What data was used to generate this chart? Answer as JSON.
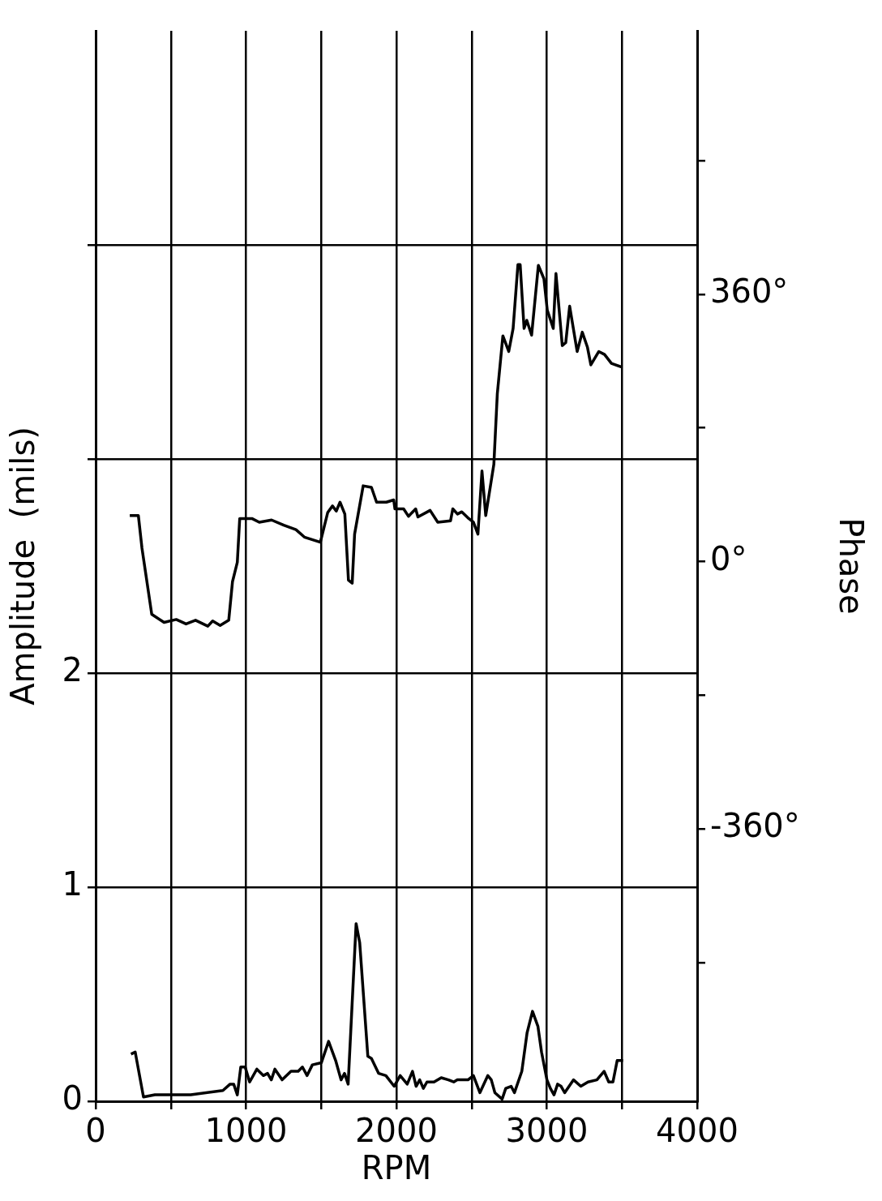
{
  "chart_data": {
    "type": "line",
    "xlabel": "RPM",
    "ylabel": "Amplitude  (mils)",
    "y2label": "Phase",
    "xlim": [
      0,
      4000
    ],
    "xticks": [
      0,
      {
        "value": 500,
        "label": null
      },
      1000,
      {
        "value": 1500,
        "label": null
      },
      2000,
      {
        "value": 2500,
        "label": null
      },
      3000,
      {
        "value": 3500,
        "label": null
      },
      4000
    ],
    "ylim": [
      0,
      5
    ],
    "yticks": [
      0,
      1,
      2,
      {
        "value": 3,
        "label": null
      },
      {
        "value": 4,
        "label": null
      }
    ],
    "y2lim": [
      -727,
      715
    ],
    "y2ticks": [
      {
        "value": -540,
        "label": null
      },
      {
        "value": -360,
        "label": "-360°"
      },
      {
        "value": -180,
        "label": null
      },
      {
        "value": 0,
        "label": "0°"
      },
      {
        "value": 180,
        "label": null
      },
      {
        "value": 360,
        "label": "360°"
      },
      {
        "value": 540,
        "label": null
      }
    ],
    "grid": true,
    "marker": "none",
    "line_style": "solid",
    "series": [
      {
        "color": "#000000",
        "x": [
          235,
          263,
          318,
          394,
          632,
          846,
          894,
          918,
          942,
          965,
          994,
          1024,
          1072,
          1115,
          1143,
          1168,
          1192,
          1240,
          1299,
          1347,
          1375,
          1406,
          1441,
          1501,
          1549,
          1596,
          1632,
          1655,
          1679,
          1732,
          1756,
          1810,
          1834,
          1882,
          1930,
          1985,
          2025,
          2072,
          2107,
          2131,
          2155,
          2179,
          2203,
          2250,
          2298,
          2346,
          2381,
          2405,
          2476,
          2512,
          2555,
          2608,
          2631,
          2655,
          2703,
          2727,
          2763,
          2785,
          2834,
          2869,
          2905,
          2941,
          2965,
          3001,
          3024,
          3048,
          3072,
          3095,
          3119,
          3178,
          3226,
          3274,
          3333,
          3381,
          3412,
          3440,
          3468,
          3507
        ],
        "values": [
          0.22,
          0.23,
          0.02,
          0.03,
          0.03,
          0.05,
          0.08,
          0.08,
          0.03,
          0.16,
          0.16,
          0.09,
          0.15,
          0.12,
          0.13,
          0.1,
          0.15,
          0.1,
          0.14,
          0.14,
          0.16,
          0.12,
          0.17,
          0.18,
          0.28,
          0.19,
          0.1,
          0.13,
          0.08,
          0.83,
          0.74,
          0.21,
          0.2,
          0.13,
          0.12,
          0.07,
          0.12,
          0.08,
          0.14,
          0.07,
          0.1,
          0.06,
          0.09,
          0.09,
          0.11,
          0.1,
          0.09,
          0.1,
          0.1,
          0.12,
          0.04,
          0.12,
          0.1,
          0.04,
          0.01,
          0.06,
          0.07,
          0.04,
          0.14,
          0.32,
          0.42,
          0.35,
          0.23,
          0.1,
          0.06,
          0.03,
          0.08,
          0.07,
          0.04,
          0.1,
          0.07,
          0.09,
          0.1,
          0.14,
          0.09,
          0.09,
          0.19,
          0.19
        ]
      },
      {
        "color": "#000000",
        "axis": "y2",
        "x": [
          227,
          284,
          308,
          373,
          455,
          536,
          601,
          664,
          746,
          778,
          828,
          885,
          910,
          942,
          958,
          1039,
          1088,
          1170,
          1251,
          1332,
          1388,
          1494,
          1543,
          1575,
          1600,
          1625,
          1657,
          1681,
          1706,
          1722,
          1779,
          1834,
          1868,
          1933,
          1982,
          1990,
          2048,
          2080,
          2128,
          2143,
          2224,
          2275,
          2360,
          2375,
          2406,
          2435,
          2481,
          2512,
          2542,
          2569,
          2594,
          2648,
          2671,
          2708,
          2747,
          2776,
          2808,
          2823,
          2849,
          2867,
          2899,
          2944,
          2981,
          3003,
          3043,
          3061,
          3103,
          3126,
          3152,
          3202,
          3236,
          3270,
          3293,
          3346,
          3384,
          3430,
          3498
        ],
        "values": [
          62,
          62,
          18,
          -71,
          -82,
          -78,
          -84,
          -79,
          -87,
          -80,
          -86,
          -79,
          -27,
          -1,
          58,
          58,
          53,
          56,
          49,
          43,
          33,
          26,
          66,
          75,
          68,
          80,
          64,
          -25,
          -29,
          37,
          102,
          100,
          80,
          80,
          83,
          71,
          71,
          61,
          71,
          60,
          69,
          53,
          55,
          71,
          64,
          67,
          58,
          53,
          37,
          122,
          62,
          131,
          226,
          304,
          283,
          314,
          400,
          400,
          314,
          325,
          305,
          399,
          381,
          339,
          314,
          388,
          291,
          295,
          344,
          283,
          309,
          289,
          265,
          283,
          279,
          267,
          262
        ]
      }
    ]
  }
}
